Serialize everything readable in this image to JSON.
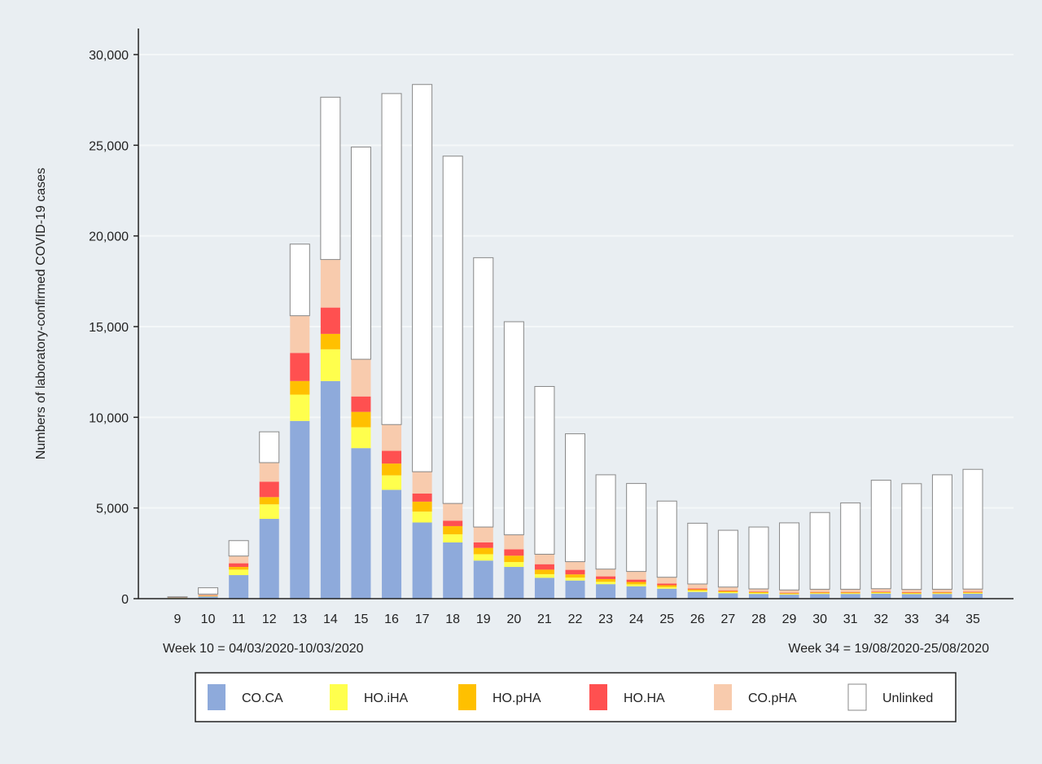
{
  "chart_data": {
    "type": "bar",
    "stacked": true,
    "ylabel": "Numbers of laboratory-confirmed COVID-19 cases",
    "xlabel": "",
    "ylim": [
      0,
      30000
    ],
    "yticks": [
      0,
      5000,
      10000,
      15000,
      20000,
      25000,
      30000
    ],
    "ytick_labels": [
      "0",
      "5,000",
      "10,000",
      "15,000",
      "20,000",
      "25,000",
      "30,000"
    ],
    "grid": "horizontal",
    "legend_position": "bottom",
    "annotations": {
      "left": "Week 10 = 04/03/2020-10/03/2020",
      "right": "Week 34 = 19/08/2020-25/08/2020"
    },
    "categories": [
      "9",
      "10",
      "11",
      "12",
      "13",
      "14",
      "15",
      "16",
      "17",
      "18",
      "19",
      "20",
      "21",
      "22",
      "23",
      "24",
      "25",
      "26",
      "27",
      "28",
      "29",
      "30",
      "31",
      "32",
      "33",
      "34",
      "35"
    ],
    "series": [
      {
        "name": "CO.CA",
        "color": "#8eaadb",
        "values": [
          30,
          120,
          1300,
          4400,
          9800,
          12000,
          8300,
          6000,
          4200,
          3100,
          2100,
          1750,
          1150,
          1000,
          800,
          680,
          550,
          370,
          300,
          260,
          220,
          260,
          260,
          280,
          250,
          260,
          270
        ]
      },
      {
        "name": "HO.iHA",
        "color": "#ffff4d",
        "values": [
          10,
          20,
          300,
          800,
          1450,
          1750,
          1150,
          800,
          600,
          450,
          350,
          270,
          200,
          160,
          130,
          110,
          90,
          70,
          60,
          50,
          40,
          40,
          40,
          40,
          40,
          40,
          40
        ]
      },
      {
        "name": "HO.pHA",
        "color": "#ffc000",
        "values": [
          10,
          20,
          150,
          400,
          750,
          850,
          850,
          650,
          550,
          450,
          350,
          350,
          250,
          180,
          150,
          130,
          100,
          70,
          60,
          50,
          40,
          40,
          40,
          40,
          40,
          40,
          40
        ]
      },
      {
        "name": "HO.HA",
        "color": "#ff5050",
        "values": [
          10,
          30,
          200,
          850,
          1550,
          1450,
          850,
          700,
          450,
          300,
          300,
          350,
          300,
          250,
          150,
          130,
          90,
          50,
          40,
          30,
          30,
          30,
          30,
          30,
          30,
          30,
          30
        ]
      },
      {
        "name": "CO.pHA",
        "color": "#f8cbad",
        "values": [
          20,
          60,
          400,
          1050,
          2050,
          2650,
          2050,
          1450,
          1200,
          950,
          850,
          800,
          550,
          450,
          400,
          450,
          350,
          250,
          180,
          150,
          150,
          150,
          150,
          160,
          150,
          150,
          150
        ]
      },
      {
        "name": "Unlinked",
        "color": "#ffffff",
        "values": [
          20,
          350,
          850,
          1700,
          3950,
          8950,
          11700,
          18250,
          21350,
          19150,
          14850,
          11750,
          9250,
          7050,
          5200,
          4850,
          4200,
          3350,
          3130,
          3410,
          3700,
          4230,
          4760,
          5980,
          5830,
          6310,
          6600
        ]
      }
    ]
  }
}
